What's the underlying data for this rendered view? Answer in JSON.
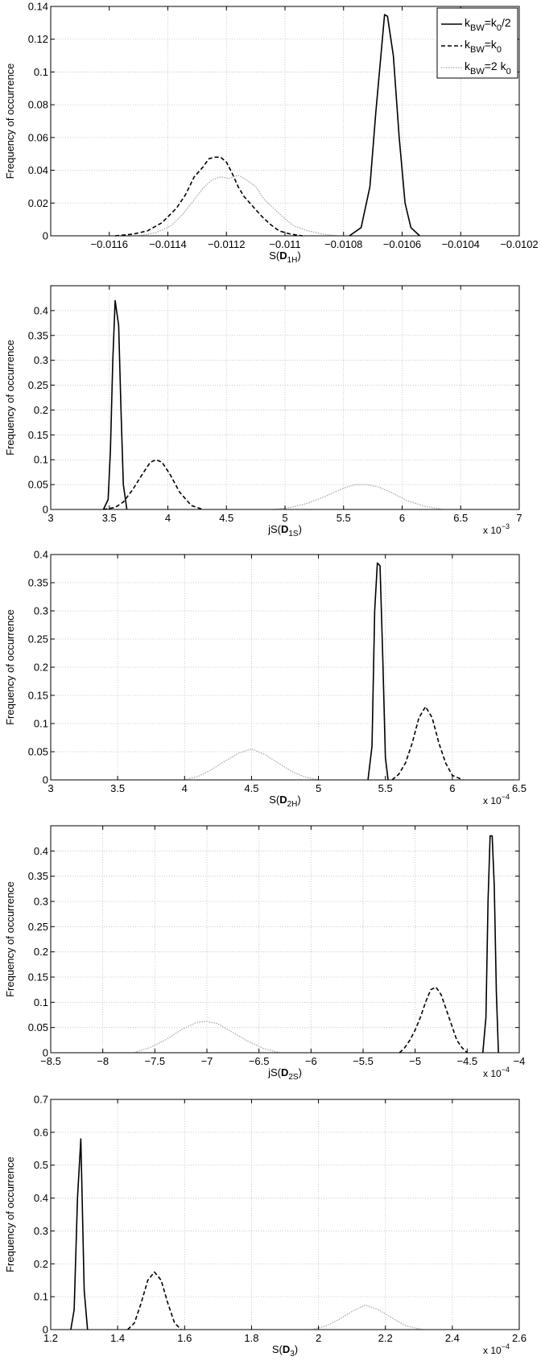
{
  "figure": {
    "ylabel": "Frequency of occurrence",
    "legend": {
      "placement": "top-right",
      "entries": [
        {
          "label_k": "k",
          "sub1": "BW",
          "mid": "=k",
          "sub2": "0",
          "tail": "/2",
          "style": "solid"
        },
        {
          "label_k": "k",
          "sub1": "BW",
          "mid": "=k",
          "sub2": "0",
          "tail": "",
          "style": "dashed"
        },
        {
          "label_k": "k",
          "sub1": "BW",
          "mid": "=2 k",
          "sub2": "0",
          "tail": "",
          "style": "dotted"
        }
      ]
    },
    "colors": {
      "solid": "#000000",
      "dashed": "#000000",
      "dotted": "#a8a8a8",
      "grid": "#bdbdbd"
    }
  },
  "chart_data": [
    {
      "type": "line",
      "xlabel": {
        "prefix": "S(",
        "bold": "D",
        "sub": "1H",
        "suffix": ")"
      },
      "ylabel": "Frequency of occurrence",
      "xlim": [
        -0.0118,
        -0.0102
      ],
      "ylim": [
        0,
        0.14
      ],
      "xticks": [
        -0.0116,
        -0.0114,
        -0.0112,
        -0.011,
        -0.0108,
        -0.0106,
        -0.0104,
        -0.0102
      ],
      "xtick_labels": [
        "−0.0116",
        "−0.0114",
        "−0.0112",
        "−0.011",
        "−0.0108",
        "−0.0106",
        "−0.0104",
        "−0.0102"
      ],
      "yticks": [
        0,
        0.02,
        0.04,
        0.06,
        0.08,
        0.1,
        0.12,
        0.14
      ],
      "ytick_labels": [
        "0",
        "0.02",
        "0.04",
        "0.06",
        "0.08",
        "0.1",
        "0.12",
        "0.14"
      ],
      "exponent": "",
      "grid": true,
      "legend": true,
      "series": [
        {
          "name": "kBW=k0/2",
          "style": "solid",
          "x": [
            -0.01078,
            -0.01074,
            -0.01071,
            -0.01069,
            -0.01067,
            -0.01066,
            -0.01065,
            -0.01063,
            -0.01061,
            -0.01059,
            -0.01057,
            -0.01054
          ],
          "y": [
            0,
            0.005,
            0.03,
            0.075,
            0.115,
            0.135,
            0.134,
            0.11,
            0.06,
            0.02,
            0.005,
            0
          ]
        },
        {
          "name": "kBW=k0",
          "style": "dashed",
          "x": [
            -0.01158,
            -0.01152,
            -0.01147,
            -0.01142,
            -0.01137,
            -0.01134,
            -0.01131,
            -0.01128,
            -0.01126,
            -0.01124,
            -0.01122,
            -0.0112,
            -0.01118,
            -0.01116,
            -0.01114,
            -0.01111,
            -0.01108,
            -0.01105,
            -0.01102,
            -0.01098,
            -0.01094
          ],
          "y": [
            0,
            0.001,
            0.003,
            0.008,
            0.017,
            0.025,
            0.036,
            0.042,
            0.047,
            0.048,
            0.048,
            0.045,
            0.038,
            0.03,
            0.024,
            0.018,
            0.012,
            0.007,
            0.003,
            0.001,
            0
          ]
        },
        {
          "name": "kBW=2 k0",
          "style": "dotted",
          "x": [
            -0.0115,
            -0.01144,
            -0.01139,
            -0.01135,
            -0.01131,
            -0.01128,
            -0.01125,
            -0.01122,
            -0.01119,
            -0.01116,
            -0.01113,
            -0.0111,
            -0.01107,
            -0.01104,
            -0.01101,
            -0.01097,
            -0.01092,
            -0.01087,
            -0.01082
          ],
          "y": [
            0,
            0.002,
            0.006,
            0.013,
            0.022,
            0.029,
            0.034,
            0.036,
            0.035,
            0.037,
            0.034,
            0.03,
            0.022,
            0.017,
            0.012,
            0.006,
            0.003,
            0.001,
            0
          ]
        }
      ]
    },
    {
      "type": "line",
      "xlabel": {
        "prefix": "jS(",
        "bold": "D",
        "sub": "1S",
        "suffix": ")"
      },
      "ylabel": "Frequency of occurrence",
      "xlim": [
        3,
        7
      ],
      "ylim": [
        0,
        0.45
      ],
      "xticks": [
        3,
        3.5,
        4,
        4.5,
        5,
        5.5,
        6,
        6.5,
        7
      ],
      "xtick_labels": [
        "3",
        "3.5",
        "4",
        "4.5",
        "5",
        "5.5",
        "6",
        "6.5",
        "7"
      ],
      "yticks": [
        0,
        0.05,
        0.1,
        0.15,
        0.2,
        0.25,
        0.3,
        0.35,
        0.4
      ],
      "ytick_labels": [
        "0",
        "0.05",
        "0.1",
        "0.15",
        "0.2",
        "0.25",
        "0.3",
        "0.35",
        "0.4"
      ],
      "exponent": "−3",
      "grid": true,
      "legend": false,
      "series": [
        {
          "name": "kBW=k0/2",
          "style": "solid",
          "x": [
            3.45,
            3.49,
            3.51,
            3.53,
            3.55,
            3.58,
            3.6,
            3.62,
            3.65
          ],
          "y": [
            0,
            0.02,
            0.12,
            0.3,
            0.42,
            0.37,
            0.2,
            0.05,
            0
          ]
        },
        {
          "name": "kBW=k0",
          "style": "dashed",
          "x": [
            3.45,
            3.55,
            3.62,
            3.7,
            3.78,
            3.85,
            3.9,
            3.95,
            4.02,
            4.1,
            4.2,
            4.3
          ],
          "y": [
            0,
            0.004,
            0.015,
            0.04,
            0.07,
            0.095,
            0.1,
            0.095,
            0.07,
            0.035,
            0.008,
            0
          ]
        },
        {
          "name": "kBW=2 k0",
          "style": "dotted",
          "x": [
            4.9,
            5.05,
            5.2,
            5.35,
            5.5,
            5.6,
            5.7,
            5.8,
            5.9,
            6.05,
            6.2,
            6.35
          ],
          "y": [
            0,
            0.004,
            0.013,
            0.027,
            0.043,
            0.05,
            0.05,
            0.045,
            0.035,
            0.017,
            0.006,
            0
          ]
        }
      ]
    },
    {
      "type": "line",
      "xlabel": {
        "prefix": "S(",
        "bold": "D",
        "sub": "2H",
        "suffix": ")"
      },
      "ylabel": "Frequency of occurrence",
      "xlim": [
        3,
        6.5
      ],
      "ylim": [
        0,
        0.4
      ],
      "xticks": [
        3,
        3.5,
        4,
        4.5,
        5,
        5.5,
        6,
        6.5
      ],
      "xtick_labels": [
        "3",
        "3.5",
        "4",
        "4.5",
        "5",
        "5.5",
        "6",
        "6.5"
      ],
      "yticks": [
        0,
        0.05,
        0.1,
        0.15,
        0.2,
        0.25,
        0.3,
        0.35,
        0.4
      ],
      "ytick_labels": [
        "0",
        "0.05",
        "0.1",
        "0.15",
        "0.2",
        "0.25",
        "0.3",
        "0.35",
        "0.4"
      ],
      "exponent": "−4",
      "grid": true,
      "legend": false,
      "series": [
        {
          "name": "kBW=k0/2",
          "style": "solid",
          "x": [
            5.37,
            5.4,
            5.42,
            5.44,
            5.46,
            5.48,
            5.5,
            5.52
          ],
          "y": [
            0,
            0.06,
            0.3,
            0.385,
            0.38,
            0.22,
            0.04,
            0
          ]
        },
        {
          "name": "kBW=k0",
          "style": "dashed",
          "x": [
            5.55,
            5.6,
            5.65,
            5.7,
            5.75,
            5.8,
            5.85,
            5.9,
            5.95,
            6.0,
            6.08
          ],
          "y": [
            0,
            0.01,
            0.03,
            0.065,
            0.11,
            0.13,
            0.11,
            0.065,
            0.03,
            0.008,
            0
          ]
        },
        {
          "name": "kBW=2 k0",
          "style": "dotted",
          "x": [
            4.0,
            4.1,
            4.2,
            4.3,
            4.4,
            4.5,
            4.6,
            4.7,
            4.8,
            4.9,
            5.0
          ],
          "y": [
            0,
            0.006,
            0.018,
            0.033,
            0.047,
            0.055,
            0.045,
            0.03,
            0.015,
            0.005,
            0
          ]
        }
      ]
    },
    {
      "type": "line",
      "xlabel": {
        "prefix": "jS(",
        "bold": "D",
        "sub": "2S",
        "suffix": ")"
      },
      "ylabel": "Frequency of occurrence",
      "xlim": [
        -8.5,
        -4
      ],
      "ylim": [
        0,
        0.45
      ],
      "xticks": [
        -8.5,
        -8,
        -7.5,
        -7,
        -6.5,
        -6,
        -5.5,
        -5,
        -4.5,
        -4
      ],
      "xtick_labels": [
        "−8.5",
        "−8",
        "−7.5",
        "−7",
        "−6.5",
        "−6",
        "−5.5",
        "−5",
        "−4.5",
        "−4"
      ],
      "yticks": [
        0,
        0.05,
        0.1,
        0.15,
        0.2,
        0.25,
        0.3,
        0.35,
        0.4
      ],
      "ytick_labels": [
        "0",
        "0.05",
        "0.1",
        "0.15",
        "0.2",
        "0.25",
        "0.3",
        "0.35",
        "0.4"
      ],
      "exponent": "−4",
      "grid": true,
      "legend": false,
      "series": [
        {
          "name": "kBW=k0/2",
          "style": "solid",
          "x": [
            -4.35,
            -4.32,
            -4.3,
            -4.28,
            -4.26,
            -4.24,
            -4.22,
            -4.2
          ],
          "y": [
            0,
            0.07,
            0.3,
            0.43,
            0.43,
            0.33,
            0.12,
            0
          ]
        },
        {
          "name": "kBW=k0",
          "style": "dashed",
          "x": [
            -5.15,
            -5.1,
            -5.05,
            -5.0,
            -4.95,
            -4.9,
            -4.85,
            -4.8,
            -4.75,
            -4.7,
            -4.65,
            -4.6,
            -4.55,
            -4.5
          ],
          "y": [
            0,
            0.01,
            0.025,
            0.045,
            0.07,
            0.1,
            0.125,
            0.13,
            0.115,
            0.085,
            0.055,
            0.025,
            0.01,
            0
          ]
        },
        {
          "name": "kBW=2 k0",
          "style": "dotted",
          "x": [
            -7.7,
            -7.55,
            -7.4,
            -7.25,
            -7.1,
            -7.0,
            -6.9,
            -6.75,
            -6.6,
            -6.45,
            -6.3
          ],
          "y": [
            0,
            0.01,
            0.025,
            0.045,
            0.06,
            0.062,
            0.058,
            0.04,
            0.022,
            0.008,
            0
          ]
        }
      ]
    },
    {
      "type": "line",
      "xlabel": {
        "prefix": "S(",
        "bold": "D",
        "sub": "3",
        "suffix": ")"
      },
      "ylabel": "Frequency of occurrence",
      "xlim": [
        1.2,
        2.6
      ],
      "ylim": [
        0,
        0.7
      ],
      "xticks": [
        1.2,
        1.4,
        1.6,
        1.8,
        2,
        2.2,
        2.4,
        2.6
      ],
      "xtick_labels": [
        "1.2",
        "1.4",
        "1.6",
        "1.8",
        "2",
        "2.2",
        "2.4",
        "2.6"
      ],
      "yticks": [
        0,
        0.1,
        0.2,
        0.3,
        0.4,
        0.5,
        0.6,
        0.7
      ],
      "ytick_labels": [
        "0",
        "0.1",
        "0.2",
        "0.3",
        "0.4",
        "0.5",
        "0.6",
        "0.7"
      ],
      "exponent": "−4",
      "grid": true,
      "legend": false,
      "series": [
        {
          "name": "kBW=k0/2",
          "style": "solid",
          "x": [
            1.26,
            1.27,
            1.28,
            1.29,
            1.3,
            1.31
          ],
          "y": [
            0,
            0.06,
            0.4,
            0.58,
            0.12,
            0
          ]
        },
        {
          "name": "kBW=k0",
          "style": "dashed",
          "x": [
            1.43,
            1.45,
            1.47,
            1.49,
            1.51,
            1.53,
            1.55,
            1.57,
            1.59
          ],
          "y": [
            0,
            0.02,
            0.08,
            0.15,
            0.175,
            0.15,
            0.08,
            0.02,
            0
          ]
        },
        {
          "name": "kBW=2 k0",
          "style": "dotted",
          "x": [
            1.98,
            2.02,
            2.06,
            2.1,
            2.14,
            2.18,
            2.22,
            2.26,
            2.31
          ],
          "y": [
            0,
            0.01,
            0.03,
            0.055,
            0.075,
            0.06,
            0.035,
            0.012,
            0
          ]
        }
      ]
    }
  ]
}
